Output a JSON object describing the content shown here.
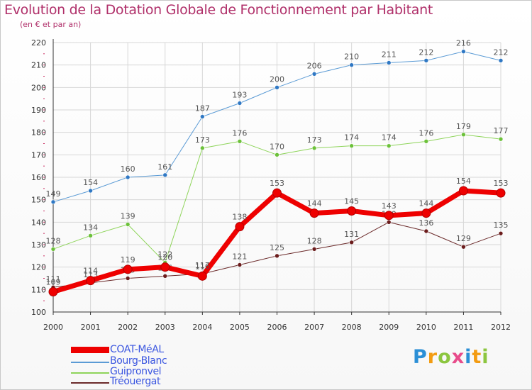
{
  "title": "Evolution de la Dotation Globale de Fonctionnement par Habitant",
  "subtitle": "(en € et par an)",
  "brand": {
    "logo_text": "Proxiti",
    "letter_colors": [
      "#2b8fd6",
      "#f39c12",
      "#8cc63f",
      "#e84c8b",
      "#2b8fd6",
      "#f39c12",
      "#8cc63f"
    ]
  },
  "colors": {
    "title": "#b0306a",
    "axis": "#333333",
    "grid": "#d7d7d7",
    "tick_mark": "#cc3366",
    "label_text": "#555555",
    "legend_text": "#3b56e0"
  },
  "chart_data": {
    "type": "line",
    "title": "Evolution de la Dotation Globale de Fonctionnement par Habitant",
    "subtitle": "(en € et par an)",
    "xlabel": "",
    "ylabel": "",
    "x": [
      "2000",
      "2001",
      "2002",
      "2003",
      "2004",
      "2005",
      "2006",
      "2007",
      "2008",
      "2009",
      "2010",
      "2011",
      "2012"
    ],
    "ylim": [
      100,
      220
    ],
    "yticks": [
      100,
      110,
      120,
      130,
      140,
      150,
      160,
      170,
      180,
      190,
      200,
      210,
      220
    ],
    "grid": true,
    "legend_position": "bottom-left",
    "series": [
      {
        "name": "Bourg-Blanc",
        "color": "#5b9bd5",
        "dot": "#2f78c4",
        "line_width": 1,
        "values": [
          149,
          154,
          160,
          161,
          187,
          193,
          200,
          206,
          210,
          211,
          212,
          216,
          212
        ]
      },
      {
        "name": "Guipronvel",
        "color": "#8ed45a",
        "dot": "#6cc13a",
        "line_width": 1,
        "values": [
          128,
          134,
          139,
          122,
          173,
          176,
          170,
          173,
          174,
          174,
          176,
          179,
          177
        ]
      },
      {
        "name": "Tréouergat",
        "color": "#6b2a2a",
        "dot": "#6b1c1c",
        "line_width": 1,
        "values": [
          111,
          113,
          115,
          116,
          117,
          121,
          125,
          128,
          131,
          140,
          136,
          129,
          135
        ]
      },
      {
        "name": "COAT-MéAL",
        "color": "#ee0000",
        "dot": "#ee0000",
        "line_width": 7,
        "values": [
          109,
          114,
          119,
          120,
          116,
          138,
          153,
          144,
          145,
          143,
          144,
          154,
          153
        ]
      }
    ],
    "legend_order": [
      "COAT-MéAL",
      "Bourg-Blanc",
      "Guipronvel",
      "Tréouergat"
    ]
  }
}
